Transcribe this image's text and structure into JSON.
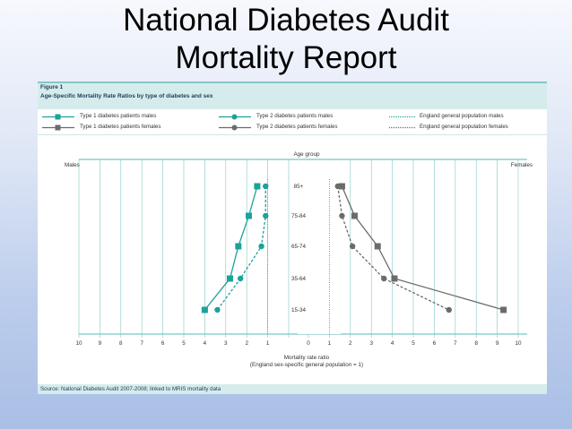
{
  "slide": {
    "title_line1": "National Diabetes Audit",
    "title_line2": "Mortality Report"
  },
  "figure": {
    "number": "Figure 1",
    "subtitle": "Age-Specific Mortality Rate Ratios by type of diabetes and sex",
    "source": "Source: National Diabetes Audit 2007-2008; linked to MRIS mortality data",
    "colors": {
      "males": "#1aa39a",
      "females": "#6b6b6b",
      "header_bg": "#d6ecec"
    }
  },
  "legend": [
    {
      "label": "Type 1 diabetes patients males",
      "marker": "square",
      "line": "solid",
      "color": "#1aa39a"
    },
    {
      "label": "Type 2 diabetes patients males",
      "marker": "circle",
      "line": "solid",
      "color": "#1aa39a"
    },
    {
      "label": "England general population males",
      "marker": "none",
      "line": "dotted",
      "color": "#1aa39a"
    },
    {
      "label": "Type 1 diabetes patients females",
      "marker": "square",
      "line": "solid",
      "color": "#6b6b6b"
    },
    {
      "label": "Type 2 diabetes patients females",
      "marker": "circle",
      "line": "solid",
      "color": "#6b6b6b"
    },
    {
      "label": "England general population females",
      "marker": "none",
      "line": "dotted",
      "color": "#6b6b6b"
    }
  ],
  "chart_data": {
    "type": "line",
    "age_group_label": "Age group",
    "left_label": "Males",
    "right_label": "Females",
    "age_groups": [
      "85+",
      "75-84",
      "65-74",
      "35-64",
      "15-34"
    ],
    "x_ticks_left": [
      "10",
      "9",
      "8",
      "7",
      "6",
      "5",
      "4",
      "3",
      "2",
      "1"
    ],
    "x_ticks_right": [
      "0",
      "1",
      "2",
      "3",
      "4",
      "5",
      "6",
      "7",
      "8",
      "9",
      "10"
    ],
    "xlabel_line1": "Mortality rate ratio",
    "xlabel_line2": "(England sex-specific general population = 1)",
    "series": [
      {
        "name": "Type 1 diabetes patients males",
        "side": "males",
        "marker": "square",
        "dashed": false,
        "values": [
          1.5,
          1.9,
          2.4,
          2.8,
          4.0
        ]
      },
      {
        "name": "Type 2 diabetes patients males",
        "side": "males",
        "marker": "circle",
        "dashed": true,
        "values": [
          1.1,
          1.1,
          1.3,
          2.3,
          3.4
        ]
      },
      {
        "name": "Type 1 diabetes patients females",
        "side": "females",
        "marker": "square",
        "dashed": false,
        "values": [
          1.6,
          2.2,
          3.3,
          4.1,
          9.3
        ]
      },
      {
        "name": "Type 2 diabetes patients females",
        "side": "females",
        "marker": "circle",
        "dashed": true,
        "values": [
          1.4,
          1.6,
          2.1,
          3.6,
          6.7
        ]
      }
    ]
  }
}
